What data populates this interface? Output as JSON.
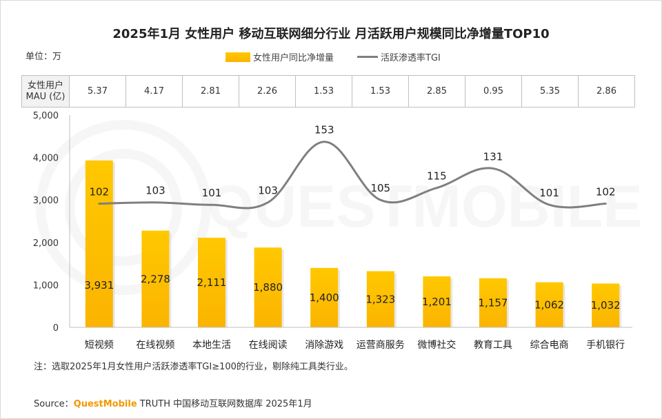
{
  "title": "2025年1月 女性用户 移动互联网细分行业 月活跃用户规模同比净增量TOP10",
  "unit_label": "单位：万",
  "legend": {
    "bar_label": "女性用户同比净增量",
    "line_label": "活跃渗透率TGI"
  },
  "mau_table": {
    "header_line1": "女性用户",
    "header_line2": "MAU (亿)",
    "values": [
      "5.37",
      "4.17",
      "2.81",
      "2.26",
      "1.53",
      "1.53",
      "2.85",
      "0.95",
      "5.35",
      "2.86"
    ]
  },
  "note": "注：选取2025年1月女性用户活跃渗透率TGI≥100的行业，剔除纯工具类行业。",
  "source": {
    "prefix": "Source：",
    "brand": "QuestMobile",
    "rest": " TRUTH 中国移动互联网数据库 2025年1月"
  },
  "watermark": "QUESTMOBILE",
  "colors": {
    "bar_top": "#ffc800",
    "bar_bottom": "#fbb400",
    "line": "#7f7f7f",
    "brand": "#f39800"
  },
  "chart_data": {
    "type": "bar",
    "categories": [
      "短视频",
      "在线视频",
      "本地生活",
      "在线阅读",
      "消除游戏",
      "运营商服务",
      "微博社交",
      "教育工具",
      "综合电商",
      "手机银行"
    ],
    "series": [
      {
        "name": "女性用户同比净增量",
        "type": "bar",
        "values": [
          3931,
          2278,
          2111,
          1880,
          1400,
          1323,
          1201,
          1157,
          1062,
          1032
        ],
        "labels": [
          "3,931",
          "2,278",
          "2,111",
          "1,880",
          "1,400",
          "1,323",
          "1,201",
          "1,157",
          "1,062",
          "1,032"
        ]
      },
      {
        "name": "活跃渗透率TGI",
        "type": "line",
        "values": [
          102,
          103,
          101,
          103,
          153,
          105,
          115,
          131,
          101,
          102
        ]
      }
    ],
    "yticks": [
      "5,000",
      "4,000",
      "3,000",
      "2,000",
      "1,000",
      "0"
    ],
    "ylim": [
      0,
      5000
    ],
    "tgi_range": [
      0,
      175
    ]
  }
}
